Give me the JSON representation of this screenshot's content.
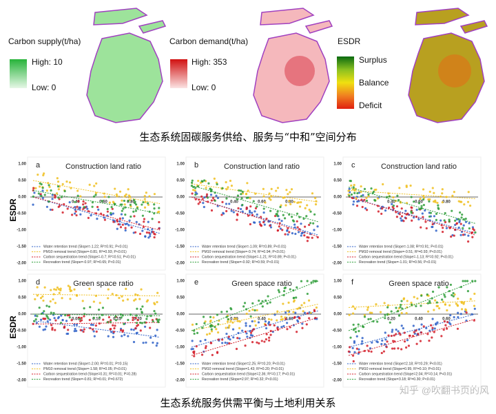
{
  "maps": [
    {
      "title": "Carbon supply(t/ha)",
      "high": "High: 10",
      "low": "Low: 0"
    },
    {
      "title": "Carbon demand(t/ha)",
      "high": "High: 353",
      "low": "Low: 0"
    },
    {
      "title": "ESDR",
      "levels": [
        "Surplus",
        "Balance",
        "Deficit"
      ]
    }
  ],
  "caption_top": "生态系统固碳服务供给、服务与“中和”空间分布",
  "y_label": "ESDR",
  "y_ticks": [
    "1.00",
    "0.50",
    "0.00",
    "-0.50",
    "-1.00",
    "-1.50",
    "-2.00"
  ],
  "panels": [
    {
      "letter": "a",
      "title": "Construction land ratio",
      "xticks": [
        "0.40",
        "0.60",
        "0.80"
      ],
      "legend": [
        "Water retention trend (Slope=-1.22; R²=0.91; P<0.01)",
        "PM10 removal trend (Slope=-0.81; R²=0.93; P<0.01)",
        "Carbon sequestration trend (Slope=-0.7; R²=0.51; P<0.01)",
        "Recreation trend (Slope=-0.97; R²=0.65; P<0.01)"
      ]
    },
    {
      "letter": "b",
      "title": "Construction land ratio",
      "xticks": [
        "0.40",
        "0.60",
        "0.80"
      ],
      "legend": [
        "Water retention trend (Slope=-1.09; R²=0.89; P<0.01)",
        "PM10 removal trend (Slope=-0.74; R²=0.94; P<0.01)",
        "Carbon sequestration trend (Slope=-1.21; R²=0.89; P<0.01)",
        "Recreation trend (Slope=-0.92; R²=0.59; P<0.01)"
      ]
    },
    {
      "letter": "c",
      "title": "Construction land ratio",
      "xticks": [
        "0.40",
        "0.60",
        "0.80"
      ],
      "legend": [
        "Water retention trend (Slope=-1.08; R²=0.91; P<0.01)",
        "PM10 removal trend (Slope=-0.51; R²=0.93; P<0.01)",
        "Carbon sequestration trend (Slope=-1.13; R²=0.92; P<0.01)",
        "Recreation trend (Slope=-1.01; R²=0.56; P<0.01)"
      ]
    },
    {
      "letter": "d",
      "title": "Green space ratio",
      "xticks": [
        "0.05",
        "0.10",
        "0.15",
        "0.20"
      ],
      "legend": [
        "Water retention trend (Slope=-2.00; R²=0.01; P=0.15)",
        "PM10 removal trend (Slope=-1.58; R²=0.05; P<0.01)",
        "Carbon sequestration trend (Slope=0.31; R²=0.01; P=0.28)",
        "Recreation trend (Slope=-0.81; R²=0.01; P=0.672)"
      ]
    },
    {
      "letter": "e",
      "title": "Green space ratio",
      "xticks": [
        "0.20",
        "0.40",
        "0.60"
      ],
      "legend": [
        "Water retention trend (Slope=2.25; R²=0.20; P<0.01)",
        "PM10 removal trend (Slope=1.43; R²=0.20; P<0.01)",
        "Carbon sequestration trend (Slope=2.36; R²=0.17; P<0.01)",
        "Recreation trend (Slope=2.97; R²=0.32; P<0.01)"
      ]
    },
    {
      "letter": "f",
      "title": "Green space ratio",
      "xticks": [
        "0.20",
        "0.40",
        "0.60"
      ],
      "legend": [
        "Water retention trend (Slope=2.18; R²=0.29; P<0.01)",
        "PM10 removal trend (Slope=0.95; R²=0.10; P<0.01)",
        "Carbon sequestration trend (Slope=2.04; R²=0.14; P<0.01)",
        "Recreation trend (Slope=3.18; R²=0.30; P<0.01)"
      ]
    }
  ],
  "caption_bottom": "生态系统服务供需平衡与土地利用关系",
  "watermark": "知乎 @吹翻书页的风"
}
